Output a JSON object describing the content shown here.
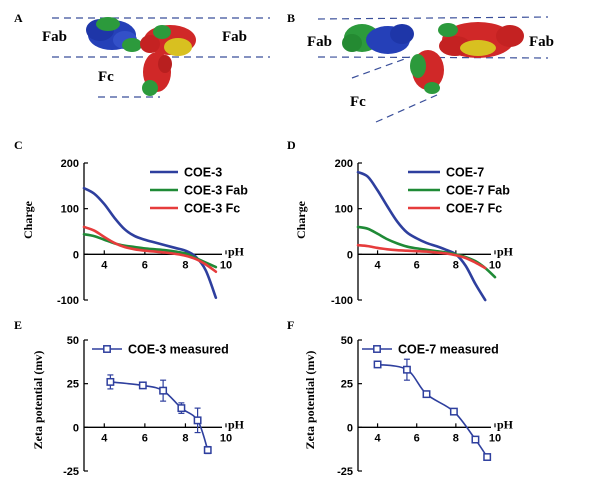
{
  "panels": {
    "A": {
      "letter": "A",
      "labels": {
        "fab_left": "Fab",
        "fab_right": "Fab",
        "fc": "Fc"
      }
    },
    "B": {
      "letter": "B",
      "labels": {
        "fab_left": "Fab",
        "fab_right": "Fab",
        "fc": "Fc"
      }
    }
  },
  "colors": {
    "blue": "#2e3f9e",
    "green": "#1f8a36",
    "red": "#e63c3c",
    "protein_blue": "#2540b8",
    "protein_green": "#2c9a3c",
    "protein_red": "#d02828",
    "protein_yellow": "#d8c020",
    "dashed": "#3a4f9a"
  },
  "chart_data": [
    {
      "panel": "C",
      "type": "line",
      "ylabel": "Charge",
      "xlabel": "pH",
      "xlim": [
        3,
        10
      ],
      "ylim": [
        -100,
        200
      ],
      "xticks": [
        "4",
        "6",
        "8",
        "10"
      ],
      "yticks": [
        "200",
        "100",
        "0",
        "-100"
      ],
      "legend": "top-right",
      "series": [
        {
          "name": "COE-3",
          "color": "blue",
          "x": [
            3,
            3.5,
            4,
            4.5,
            5,
            5.5,
            6,
            6.5,
            7,
            7.5,
            8,
            8.5,
            9,
            9.5
          ],
          "y": [
            145,
            133,
            110,
            80,
            55,
            40,
            32,
            26,
            20,
            14,
            8,
            -5,
            -35,
            -95
          ]
        },
        {
          "name": "COE-3 Fab",
          "color": "green",
          "x": [
            3,
            3.5,
            4,
            4.5,
            5,
            5.5,
            6,
            6.5,
            7,
            7.5,
            8,
            8.5,
            9,
            9.5
          ],
          "y": [
            44,
            40,
            32,
            24,
            19,
            16,
            13,
            11,
            9,
            6,
            2,
            -8,
            -18,
            -28
          ]
        },
        {
          "name": "COE-3 Fc",
          "color": "red",
          "x": [
            3,
            3.5,
            4,
            4.5,
            5,
            5.5,
            6,
            6.5,
            7,
            7.5,
            8,
            8.5,
            9,
            9.5
          ],
          "y": [
            60,
            52,
            38,
            25,
            16,
            11,
            8,
            6,
            4,
            1,
            -3,
            -10,
            -22,
            -38
          ]
        }
      ]
    },
    {
      "panel": "D",
      "type": "line",
      "ylabel": "Charge",
      "xlabel": "pH",
      "xlim": [
        3,
        10
      ],
      "ylim": [
        -100,
        200
      ],
      "xticks": [
        "4",
        "6",
        "8",
        "10"
      ],
      "yticks": [
        "200",
        "100",
        "0",
        "-100"
      ],
      "legend": "top-right",
      "series": [
        {
          "name": "COE-7",
          "color": "blue",
          "x": [
            3,
            3.5,
            4,
            4.5,
            5,
            5.5,
            6,
            6.5,
            7,
            7.5,
            8,
            8.5,
            9,
            9.5
          ],
          "y": [
            180,
            170,
            140,
            105,
            72,
            48,
            35,
            25,
            18,
            10,
            0,
            -25,
            -65,
            -100
          ]
        },
        {
          "name": "COE-7 Fab",
          "color": "green",
          "x": [
            3,
            3.5,
            4,
            4.5,
            5,
            5.5,
            6,
            6.5,
            7,
            7.5,
            8,
            8.5,
            9,
            9.5,
            10
          ],
          "y": [
            60,
            56,
            45,
            33,
            24,
            17,
            13,
            10,
            7,
            4,
            0,
            -6,
            -15,
            -30,
            -50
          ]
        },
        {
          "name": "COE-7 Fc",
          "color": "red",
          "x": [
            3,
            3.5,
            4,
            4.5,
            5,
            5.5,
            6,
            6.5,
            7,
            7.5,
            8,
            8.5,
            9,
            9.5
          ],
          "y": [
            20,
            18,
            14,
            11,
            9,
            8,
            7,
            6,
            4,
            2,
            -2,
            -8,
            -18,
            -30
          ]
        }
      ]
    },
    {
      "panel": "E",
      "type": "line",
      "ylabel": "Zeta potential (mv)",
      "xlabel": "pH",
      "xlim": [
        3,
        10
      ],
      "ylim": [
        -25,
        50
      ],
      "xticks": [
        "4",
        "6",
        "8",
        "10"
      ],
      "yticks": [
        "50",
        "25",
        "0",
        "-25"
      ],
      "legend": "top-right",
      "series": [
        {
          "name": "COE-3 measured",
          "color": "blue",
          "marker": "square",
          "x": [
            4.3,
            5.9,
            6.9,
            7.8,
            8.6,
            9.1
          ],
          "y": [
            26,
            24,
            21,
            11,
            4,
            -13
          ],
          "err": [
            4,
            1.5,
            6,
            3,
            7,
            2
          ]
        }
      ]
    },
    {
      "panel": "F",
      "type": "line",
      "ylabel": "Zeta potential (mv)",
      "xlabel": "pH",
      "xlim": [
        3,
        10
      ],
      "ylim": [
        -25,
        50
      ],
      "xticks": [
        "4",
        "6",
        "8",
        "10"
      ],
      "yticks": [
        "50",
        "25",
        "0",
        "-25"
      ],
      "legend": "top-right",
      "series": [
        {
          "name": "COE-7 measured",
          "color": "blue",
          "marker": "square",
          "x": [
            4.0,
            5.5,
            6.5,
            7.9,
            9.0,
            9.6
          ],
          "y": [
            36,
            33,
            19,
            9,
            -7,
            -17
          ],
          "err": [
            1,
            6,
            1,
            1.5,
            1,
            1
          ]
        }
      ]
    }
  ]
}
